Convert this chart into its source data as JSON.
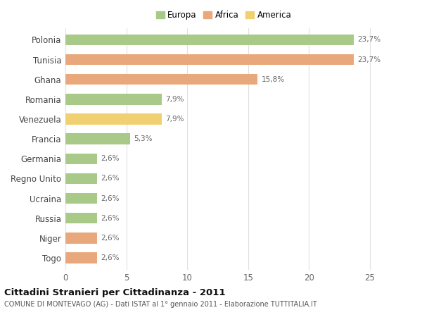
{
  "categories": [
    "Polonia",
    "Tunisia",
    "Ghana",
    "Romania",
    "Venezuela",
    "Francia",
    "Germania",
    "Regno Unito",
    "Ucraina",
    "Russia",
    "Niger",
    "Togo"
  ],
  "values": [
    23.7,
    23.7,
    15.8,
    7.9,
    7.9,
    5.3,
    2.6,
    2.6,
    2.6,
    2.6,
    2.6,
    2.6
  ],
  "labels": [
    "23,7%",
    "23,7%",
    "15,8%",
    "7,9%",
    "7,9%",
    "5,3%",
    "2,6%",
    "2,6%",
    "2,6%",
    "2,6%",
    "2,6%",
    "2,6%"
  ],
  "colors": [
    "#a8c987",
    "#e8a87c",
    "#e8a87c",
    "#a8c987",
    "#f0d070",
    "#a8c987",
    "#a8c987",
    "#a8c987",
    "#a8c987",
    "#a8c987",
    "#e8a87c",
    "#e8a87c"
  ],
  "legend_labels": [
    "Europa",
    "Africa",
    "America"
  ],
  "legend_colors": [
    "#a8c987",
    "#e8a87c",
    "#f0d070"
  ],
  "title": "Cittadini Stranieri per Cittadinanza - 2011",
  "subtitle": "COMUNE DI MONTEVAGO (AG) - Dati ISTAT al 1° gennaio 2011 - Elaborazione TUTTITALIA.IT",
  "xlim": [
    0,
    26
  ],
  "xticks": [
    0,
    5,
    10,
    15,
    20,
    25
  ],
  "background_color": "#ffffff",
  "grid_color": "#e0e0e0",
  "bar_height": 0.55
}
